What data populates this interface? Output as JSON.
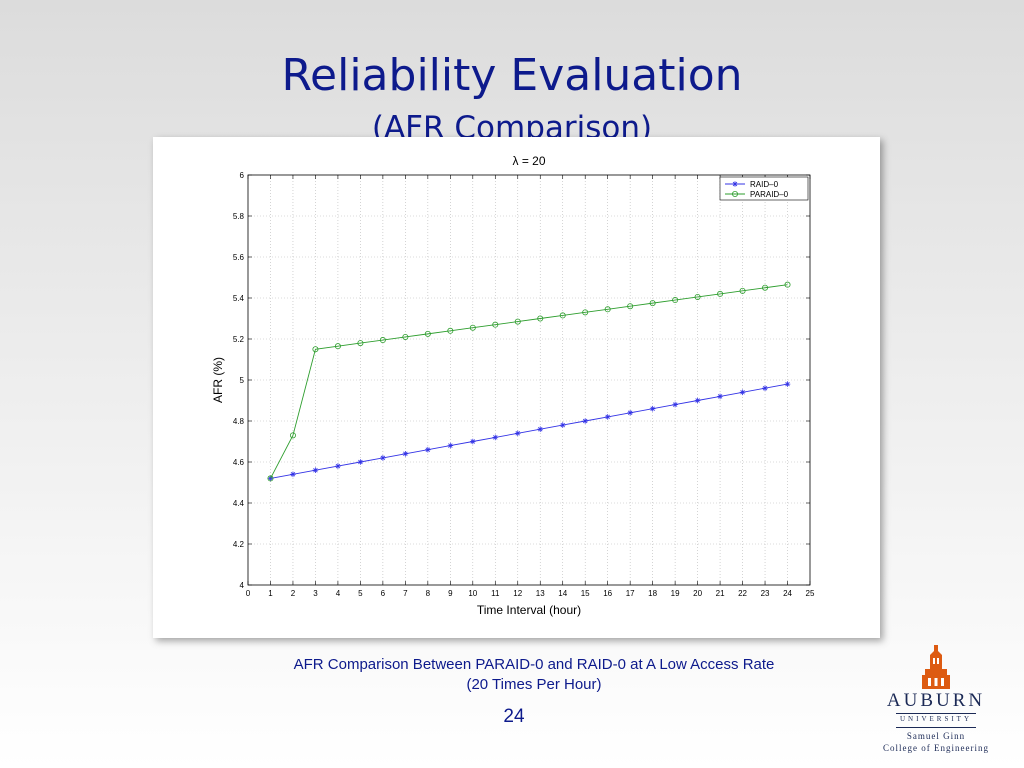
{
  "slide": {
    "title": "Reliability Evaluation",
    "subtitle": "(AFR Comparison)",
    "caption_line1": "AFR Comparison Between PARAID-0 and RAID-0 at A Low Access Rate",
    "caption_line2": "(20 Times Per Hour)",
    "page_number": "24"
  },
  "logo": {
    "name": "AUBURN",
    "university": "UNIVERSITY",
    "college_line1": "Samuel Ginn",
    "college_line2": "College of Engineering",
    "accent_color": "#dd5b12",
    "icon": "tower-icon"
  },
  "chart_data": {
    "type": "line",
    "title": "λ = 20",
    "xlabel": "Time Interval (hour)",
    "ylabel": "AFR (%)",
    "xlim": [
      0,
      25
    ],
    "ylim": [
      4,
      6
    ],
    "xticks": [
      "0",
      "1",
      "2",
      "3",
      "4",
      "5",
      "6",
      "7",
      "8",
      "9",
      "10",
      "11",
      "12",
      "13",
      "14",
      "15",
      "16",
      "17",
      "18",
      "19",
      "20",
      "21",
      "22",
      "23",
      "24",
      "25"
    ],
    "yticks": [
      "4",
      "4.2",
      "4.4",
      "4.6",
      "4.8",
      "5",
      "5.2",
      "5.4",
      "5.6",
      "5.8",
      "6"
    ],
    "grid": true,
    "legend_position": "top-right",
    "x": [
      1,
      2,
      3,
      4,
      5,
      6,
      7,
      8,
      9,
      10,
      11,
      12,
      13,
      14,
      15,
      16,
      17,
      18,
      19,
      20,
      21,
      22,
      23,
      24
    ],
    "series": [
      {
        "name": "RAID–0",
        "color": "#3333e6",
        "marker": "star",
        "values": [
          4.52,
          4.54,
          4.56,
          4.58,
          4.6,
          4.62,
          4.64,
          4.66,
          4.68,
          4.7,
          4.72,
          4.74,
          4.76,
          4.78,
          4.8,
          4.82,
          4.84,
          4.86,
          4.88,
          4.9,
          4.92,
          4.94,
          4.96,
          4.98
        ]
      },
      {
        "name": "PARAID–0",
        "color": "#2e9e2e",
        "marker": "circle",
        "values": [
          4.52,
          4.73,
          5.15,
          5.165,
          5.18,
          5.195,
          5.21,
          5.225,
          5.24,
          5.255,
          5.27,
          5.285,
          5.3,
          5.315,
          5.33,
          5.345,
          5.36,
          5.375,
          5.39,
          5.405,
          5.42,
          5.435,
          5.45,
          5.465
        ]
      }
    ]
  }
}
